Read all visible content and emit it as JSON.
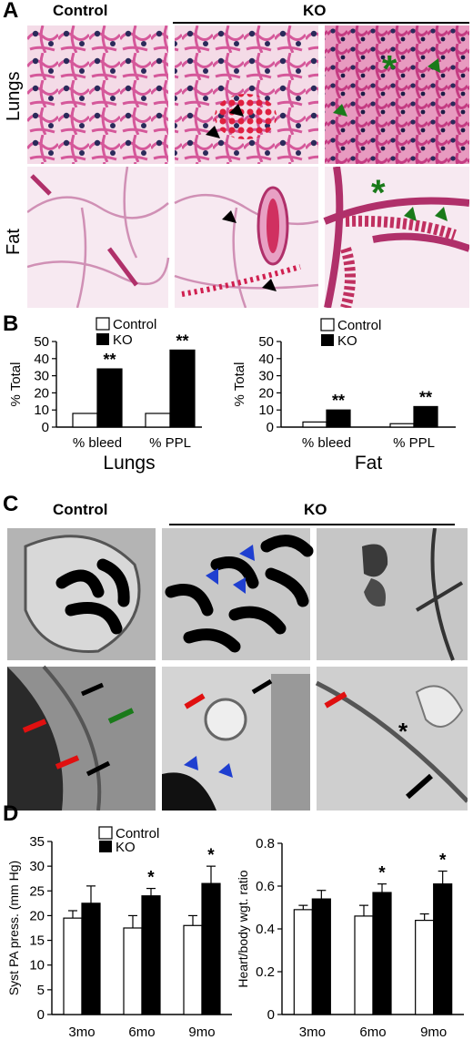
{
  "panelA": {
    "letter": "A",
    "col_control": "Control",
    "col_ko": "KO",
    "row_lungs": "Lungs",
    "row_fat": "Fat"
  },
  "panelB": {
    "letter": "B",
    "legend_control": "Control",
    "legend_ko": "KO"
  },
  "panelC": {
    "letter": "C",
    "col_control": "Control",
    "col_ko": "KO"
  },
  "panelD": {
    "letter": "D",
    "legend_control": "Control",
    "legend_ko": "KO"
  },
  "colors": {
    "control_bar": "#ffffff",
    "ko_bar": "#000000",
    "arrow_black": "#000000",
    "arrow_green": "#1a7a1a",
    "arrow_red": "#e01010",
    "arrow_blue": "#1f3fd0",
    "he_pink": "#e8a7c6",
    "em_gray": "#a8a8a8"
  },
  "chart_data": [
    {
      "id": "lungs",
      "type": "bar",
      "xlabel": "Lungs",
      "ylabel": "% Total",
      "categories": [
        "% bleed",
        "% PPL"
      ],
      "series": [
        {
          "name": "Control",
          "values": [
            8,
            8
          ]
        },
        {
          "name": "KO",
          "values": [
            34,
            45
          ]
        }
      ],
      "annotations": [
        "**",
        "**"
      ],
      "ylim": [
        0,
        50
      ],
      "yticks": [
        "0",
        "10",
        "20",
        "30",
        "40",
        "50"
      ]
    },
    {
      "id": "fat",
      "type": "bar",
      "xlabel": "Fat",
      "ylabel": "% Total",
      "categories": [
        "% bleed",
        "% PPL"
      ],
      "series": [
        {
          "name": "Control",
          "values": [
            3,
            2
          ]
        },
        {
          "name": "KO",
          "values": [
            10,
            12
          ]
        }
      ],
      "annotations": [
        "**",
        "**"
      ],
      "ylim": [
        0,
        50
      ],
      "yticks": [
        "0",
        "10",
        "20",
        "30",
        "40",
        "50"
      ]
    },
    {
      "id": "pa_pressure",
      "type": "bar",
      "ylabel": "Syst PA press. (mm Hg)",
      "categories": [
        "3mo",
        "6mo",
        "9mo"
      ],
      "series": [
        {
          "name": "Control",
          "values": [
            19.5,
            17.5,
            18
          ],
          "error": [
            1.5,
            2.5,
            2
          ]
        },
        {
          "name": "KO",
          "values": [
            22.5,
            24,
            26.5
          ],
          "error": [
            3.5,
            1.5,
            3.5
          ]
        }
      ],
      "annotations": [
        "",
        "*",
        "*"
      ],
      "ylim": [
        0,
        35
      ],
      "yticks": [
        "0",
        "5",
        "10",
        "15",
        "20",
        "25",
        "30",
        "35"
      ]
    },
    {
      "id": "heart_body",
      "type": "bar",
      "ylabel": "Heart/body wgt. ratio",
      "categories": [
        "3mo",
        "6mo",
        "9mo"
      ],
      "series": [
        {
          "name": "Control",
          "values": [
            0.49,
            0.46,
            0.44
          ],
          "error": [
            0.02,
            0.05,
            0.03
          ]
        },
        {
          "name": "KO",
          "values": [
            0.54,
            0.57,
            0.61
          ],
          "error": [
            0.04,
            0.04,
            0.06
          ]
        }
      ],
      "annotations": [
        "",
        "*",
        "*"
      ],
      "ylim": [
        0,
        0.8
      ],
      "yticks": [
        "0",
        "0.2",
        "0.4",
        "0.6",
        "0.8"
      ]
    }
  ]
}
